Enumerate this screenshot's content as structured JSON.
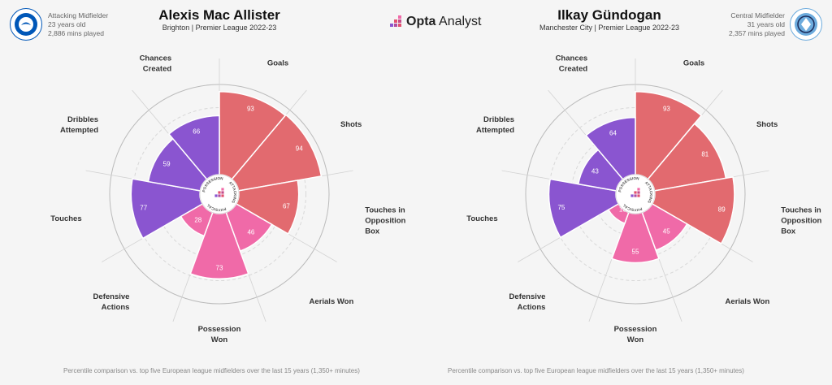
{
  "brand": {
    "opta": "Opta",
    "analyst": "Analyst"
  },
  "left": {
    "name": "Alexis Mac Allister",
    "subtitle": "Brighton | Premier League 2022-23",
    "info": [
      "Attacking Midfielder",
      "23 years old",
      "2,886 mins played"
    ],
    "footnote": "Percentile comparison vs. top five European league midfielders over the last 15 years (1,350+ minutes)"
  },
  "right": {
    "name": "Ilkay Gündogan",
    "subtitle": "Manchester City | Premier League 2022-23",
    "info": [
      "Central Midfielder",
      "31 years old",
      "2,357 mins played"
    ],
    "footnote": "Percentile comparison vs. top five European league midfielders over the last 15 years (1,350+ minutes)"
  },
  "center_ring_labels": [
    "POSSESSION",
    "ATTACKING",
    "PHYSICAL"
  ],
  "colors": {
    "attacking": "#e26a6f",
    "physical": "#f06aa8",
    "possession": "#8a55d0",
    "grid": "#cccccc"
  },
  "chart_data": [
    {
      "type": "polar-area",
      "title": "Alexis Mac Allister",
      "rlim": [
        0,
        100
      ],
      "categories": [
        {
          "label": [
            "Goals"
          ],
          "group": "attacking",
          "value": 93
        },
        {
          "label": [
            "Shots"
          ],
          "group": "attacking",
          "value": 94
        },
        {
          "label": [
            "Touches in",
            "Opposition",
            "Box"
          ],
          "group": "attacking",
          "value": 67
        },
        {
          "label": [
            "Aerials Won"
          ],
          "group": "physical",
          "value": 46
        },
        {
          "label": [
            "Possession",
            "Won"
          ],
          "group": "physical",
          "value": 73
        },
        {
          "label": [
            "Defensive",
            "Actions"
          ],
          "group": "physical",
          "value": 28
        },
        {
          "label": [
            "Touches"
          ],
          "group": "possession",
          "value": 77
        },
        {
          "label": [
            "Dribbles",
            "Attempted"
          ],
          "group": "possession",
          "value": 59
        },
        {
          "label": [
            "Chances",
            "Created"
          ],
          "group": "possession",
          "value": 66
        }
      ]
    },
    {
      "type": "polar-area",
      "title": "Ilkay Gündogan",
      "rlim": [
        0,
        100
      ],
      "categories": [
        {
          "label": [
            "Goals"
          ],
          "group": "attacking",
          "value": 93
        },
        {
          "label": [
            "Shots"
          ],
          "group": "attacking",
          "value": 81
        },
        {
          "label": [
            "Touches in",
            "Opposition",
            "Box"
          ],
          "group": "attacking",
          "value": 89
        },
        {
          "label": [
            "Aerials Won"
          ],
          "group": "physical",
          "value": 45
        },
        {
          "label": [
            "Possession",
            "Won"
          ],
          "group": "physical",
          "value": 55
        },
        {
          "label": [
            "Defensive",
            "Actions"
          ],
          "group": "physical",
          "value": 13
        },
        {
          "label": [
            "Touches"
          ],
          "group": "possession",
          "value": 75
        },
        {
          "label": [
            "Dribbles",
            "Attempted"
          ],
          "group": "possession",
          "value": 43
        },
        {
          "label": [
            "Chances",
            "Created"
          ],
          "group": "possession",
          "value": 64
        }
      ]
    }
  ]
}
